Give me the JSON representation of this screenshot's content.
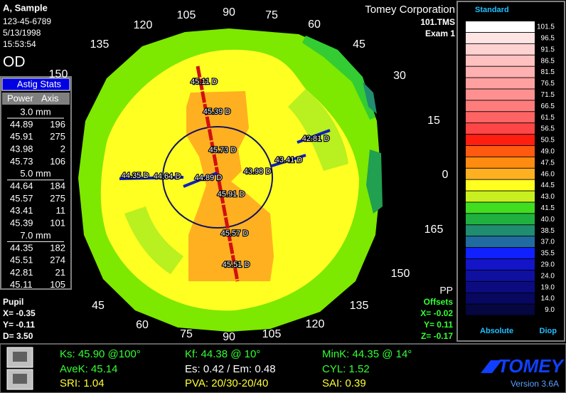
{
  "header": {
    "patient": "A, Sample",
    "id": "123-45-6789",
    "date": "5/13/1998",
    "time": "15:53:54",
    "eye": "OD",
    "company": "Tomey Corporation",
    "file": "101.TMS",
    "exam": "Exam 1"
  },
  "astig_stats": {
    "title": "Astig Stats",
    "columns": [
      "Power",
      "Axis"
    ],
    "groups": [
      {
        "zone": "3.0 mm",
        "rows": [
          [
            "44.89",
            "196"
          ],
          [
            "45.91",
            "275"
          ],
          [
            "43.98",
            "2"
          ],
          [
            "45.73",
            "106"
          ]
        ]
      },
      {
        "zone": "5.0 mm",
        "rows": [
          [
            "44.64",
            "184"
          ],
          [
            "45.57",
            "275"
          ],
          [
            "43.41",
            "11"
          ],
          [
            "45.39",
            "101"
          ]
        ]
      },
      {
        "zone": "7.0 mm",
        "rows": [
          [
            "44.35",
            "182"
          ],
          [
            "45.51",
            "274"
          ],
          [
            "42.81",
            "21"
          ],
          [
            "45.11",
            "105"
          ]
        ]
      }
    ]
  },
  "pupil": {
    "title": "Pupil",
    "lines": [
      "X= -0.35",
      "Y= -0.11",
      "D=  3.50"
    ]
  },
  "offsets": {
    "pp": "PP",
    "title": "Offsets",
    "lines": [
      "X= -0.02",
      "Y=  0.11",
      "Z= -0.17"
    ]
  },
  "axis_labels": [
    "0",
    "15",
    "30",
    "45",
    "60",
    "75",
    "90",
    "105",
    "120",
    "135",
    "150",
    "45",
    "60",
    "75",
    "90",
    "105",
    "120",
    "135",
    "150",
    "165"
  ],
  "map_labels": [
    "45.11 D",
    "45.39 D",
    "45.73 D",
    "42.81 D",
    "43.41 D",
    "43.98 D",
    "44.35 D",
    "44.64 D",
    "44.89 D",
    "45.91 D",
    "45.57 D",
    "45.51 D"
  ],
  "scale": {
    "title": "Standard",
    "mode": "Absolute",
    "unit": "Diop",
    "steps": [
      {
        "label": "101.5",
        "color": "#ffffff"
      },
      {
        "label": "96.5",
        "color": "#ffe4e4"
      },
      {
        "label": "91.5",
        "color": "#ffd2d2"
      },
      {
        "label": "86.5",
        "color": "#ffc0c0"
      },
      {
        "label": "81.5",
        "color": "#ffb0b0"
      },
      {
        "label": "76.5",
        "color": "#ffa0a0"
      },
      {
        "label": "71.5",
        "color": "#ff9090"
      },
      {
        "label": "66.5",
        "color": "#ff7c7c"
      },
      {
        "label": "61.5",
        "color": "#ff6464"
      },
      {
        "label": "56.5",
        "color": "#ff4646"
      },
      {
        "label": "50.5",
        "color": "#ff1e10"
      },
      {
        "label": "49.0",
        "color": "#ff5a10"
      },
      {
        "label": "47.5",
        "color": "#ff8c10"
      },
      {
        "label": "46.0",
        "color": "#ffb020"
      },
      {
        "label": "44.5",
        "color": "#ffff20"
      },
      {
        "label": "43.0",
        "color": "#c8f020"
      },
      {
        "label": "41.5",
        "color": "#40dd20"
      },
      {
        "label": "40.0",
        "color": "#20b040"
      },
      {
        "label": "38.5",
        "color": "#208c70"
      },
      {
        "label": "37.0",
        "color": "#206ca0"
      },
      {
        "label": "35.5",
        "color": "#1020ff"
      },
      {
        "label": "29.0",
        "color": "#1414c8"
      },
      {
        "label": "24.0",
        "color": "#1010a0"
      },
      {
        "label": "19.0",
        "color": "#0c0c80"
      },
      {
        "label": "14.0",
        "color": "#080860"
      },
      {
        "label": "9.0",
        "color": "#060640"
      }
    ]
  },
  "indices": [
    {
      "text": "Ks: 45.90 @100°",
      "color": "#33ff33"
    },
    {
      "text": "Kf: 44.38 @ 10°",
      "color": "#33ff33"
    },
    {
      "text": "MinK: 44.35 @ 14°",
      "color": "#33ff33"
    },
    {
      "text": "AveK: 45.14",
      "color": "#33ff33"
    },
    {
      "text": "Es: 0.42 / Em: 0.48",
      "color": "#ffffff"
    },
    {
      "text": "CYL:  1.52",
      "color": "#33ff33"
    },
    {
      "text": "SRI: 1.04",
      "color": "#ffff33"
    },
    {
      "text": "PVA: 20/30-20/40",
      "color": "#ffff33"
    },
    {
      "text": "SAI: 0.39",
      "color": "#ffff33"
    }
  ],
  "brand": {
    "logo": "TOMEY",
    "version": "Version 3.6A"
  }
}
